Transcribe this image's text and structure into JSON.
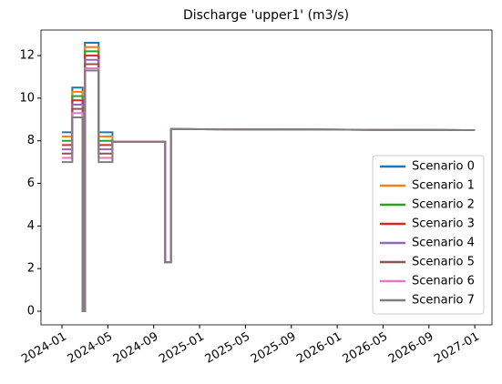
{
  "chart_data": {
    "type": "line",
    "title": "Discharge 'upper1' (m3/s)",
    "x": [
      0,
      0.9,
      0.9,
      1.8,
      1.8,
      2.0,
      2.0,
      3.2,
      3.2,
      4.4,
      4.4,
      9.0,
      9.0,
      9.5,
      9.5,
      36
    ],
    "xlim": [
      -1.83,
      37.5
    ],
    "xticks": [
      {
        "value": 0,
        "label": "2024-01"
      },
      {
        "value": 4,
        "label": "2024-05"
      },
      {
        "value": 8,
        "label": "2024-09"
      },
      {
        "value": 12,
        "label": "2025-01"
      },
      {
        "value": 16,
        "label": "2025-05"
      },
      {
        "value": 20,
        "label": "2025-09"
      },
      {
        "value": 24,
        "label": "2026-01"
      },
      {
        "value": 28,
        "label": "2026-05"
      },
      {
        "value": 32,
        "label": "2026-09"
      },
      {
        "value": 36,
        "label": "2027-01"
      }
    ],
    "ylim": [
      -0.64,
      13.2
    ],
    "yticks": [
      0,
      2,
      4,
      6,
      8,
      10,
      12
    ],
    "legend": "lower right",
    "series": [
      {
        "name": "Scenario 0",
        "color": "#1f77b4",
        "values": [
          8.4,
          8.4,
          10.5,
          10.5,
          0,
          0,
          12.6,
          12.6,
          8.4,
          8.4,
          7.95,
          7.95,
          2.3,
          2.3,
          8.55,
          8.5
        ]
      },
      {
        "name": "Scenario 1",
        "color": "#ff7f0e",
        "values": [
          8.2,
          8.2,
          10.3,
          10.3,
          0,
          0,
          12.4,
          12.4,
          8.2,
          8.2,
          7.95,
          7.95,
          2.3,
          2.3,
          8.55,
          8.5
        ]
      },
      {
        "name": "Scenario 2",
        "color": "#2ca02c",
        "values": [
          8.0,
          8.0,
          10.1,
          10.1,
          0,
          0,
          12.2,
          12.2,
          8.0,
          8.0,
          7.95,
          7.95,
          2.3,
          2.3,
          8.55,
          8.5
        ]
      },
      {
        "name": "Scenario 3",
        "color": "#d62728",
        "values": [
          7.8,
          7.8,
          9.9,
          9.9,
          0,
          0,
          12.0,
          12.0,
          7.8,
          7.8,
          7.95,
          7.95,
          2.3,
          2.3,
          8.55,
          8.5
        ]
      },
      {
        "name": "Scenario 4",
        "color": "#9467bd",
        "values": [
          7.6,
          7.6,
          9.7,
          9.7,
          0,
          0,
          11.8,
          11.8,
          7.6,
          7.6,
          7.95,
          7.95,
          2.3,
          2.3,
          8.55,
          8.5
        ]
      },
      {
        "name": "Scenario 5",
        "color": "#8c564b",
        "values": [
          7.4,
          7.4,
          9.5,
          9.5,
          0,
          0,
          11.6,
          11.6,
          7.4,
          7.4,
          7.95,
          7.95,
          2.3,
          2.3,
          8.55,
          8.5
        ]
      },
      {
        "name": "Scenario 6",
        "color": "#e377c2",
        "values": [
          7.2,
          7.2,
          9.3,
          9.3,
          0,
          0,
          11.4,
          11.4,
          7.2,
          7.2,
          7.95,
          7.95,
          2.3,
          2.3,
          8.55,
          8.5
        ]
      },
      {
        "name": "Scenario 7",
        "color": "#7f7f7f",
        "values": [
          7.0,
          7.0,
          9.1,
          9.1,
          0,
          0,
          11.3,
          11.3,
          7.0,
          7.0,
          7.95,
          7.95,
          2.3,
          2.3,
          8.55,
          8.5
        ]
      }
    ]
  }
}
